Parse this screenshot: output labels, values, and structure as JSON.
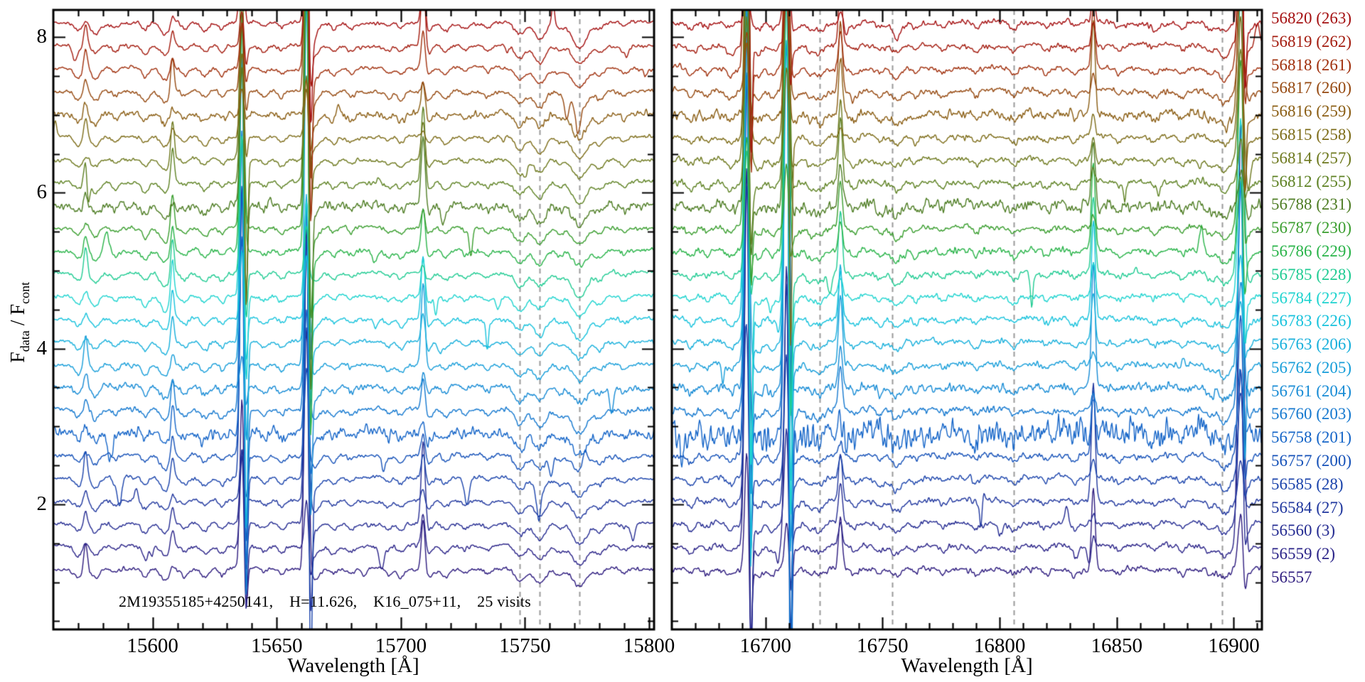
{
  "figure": {
    "annotation": "2M19355185+4250141,    H=11.626,    K16_075+11,    25 visits",
    "y_axis": {
      "f1": "F",
      "sub1": "data",
      "mid": " / F",
      "sub2": "cont"
    }
  },
  "chart_data": {
    "type": "line",
    "title": "",
    "ylabel": "F_data / F_cont",
    "ylim": [
      0.4,
      8.35
    ],
    "yticks": [
      2,
      4,
      6,
      8
    ],
    "y_minor_step": 0.5,
    "offset_start": 1.17,
    "offset_step": 0.2921,
    "panels": [
      {
        "xlabel": "Wavelength [Å]",
        "xlim": [
          15560,
          15802
        ],
        "xticks": [
          15600,
          15650,
          15700,
          15750,
          15800
        ],
        "x_minor_step": 10,
        "dashed_lines": [
          15748,
          15756,
          15772
        ],
        "emission_lines": [
          {
            "l": 15573,
            "w": 0.7,
            "a": 0.35
          },
          {
            "l": 15608,
            "w": 0.7,
            "a": 0.65
          },
          {
            "l": 15636,
            "w": 0.8,
            "a": 2.6,
            "big": true
          },
          {
            "l": 15662,
            "w": 0.8,
            "a": 3.2,
            "big": true
          },
          {
            "l": 15709,
            "w": 0.8,
            "a": 1.0
          }
        ],
        "absorption_lines": [
          {
            "l": 15570,
            "d": 0.1,
            "w": 1.5
          },
          {
            "l": 15577,
            "d": 0.12,
            "w": 1.5
          },
          {
            "l": 15585,
            "d": 0.06,
            "w": 1.2
          },
          {
            "l": 15597,
            "d": 0.1,
            "w": 1.3
          },
          {
            "l": 15605,
            "d": 0.15,
            "w": 1.8
          },
          {
            "l": 15613,
            "d": 0.07,
            "w": 1.2
          },
          {
            "l": 15621,
            "d": 0.1,
            "w": 1.5
          },
          {
            "l": 15628,
            "d": 0.08,
            "w": 1.2
          },
          {
            "l": 15645,
            "d": 0.06,
            "w": 1.2
          },
          {
            "l": 15652,
            "d": 0.07,
            "w": 1.2
          },
          {
            "l": 15665,
            "d": 0.13,
            "w": 2.0
          },
          {
            "l": 15673,
            "d": 0.07,
            "w": 1.3
          },
          {
            "l": 15680,
            "d": 0.06,
            "w": 1.2
          },
          {
            "l": 15695,
            "d": 0.06,
            "w": 1.2
          },
          {
            "l": 15700,
            "d": 0.08,
            "w": 1.3
          },
          {
            "l": 15711,
            "d": 0.1,
            "w": 1.5
          },
          {
            "l": 15718,
            "d": 0.08,
            "w": 1.4
          },
          {
            "l": 15726,
            "d": 0.05,
            "w": 1.2
          },
          {
            "l": 15735,
            "d": 0.06,
            "w": 1.3
          },
          {
            "l": 15748,
            "d": 0.17,
            "w": 2.1
          },
          {
            "l": 15756,
            "d": 0.2,
            "w": 2.3
          },
          {
            "l": 15764,
            "d": 0.07,
            "w": 1.4
          },
          {
            "l": 15772,
            "d": 0.26,
            "w": 2.9
          },
          {
            "l": 15780,
            "d": 0.09,
            "w": 1.6
          },
          {
            "l": 15790,
            "d": 0.06,
            "w": 1.3
          }
        ]
      },
      {
        "xlabel": "Wavelength [Å]",
        "xlim": [
          16660,
          16912
        ],
        "xticks": [
          16700,
          16750,
          16800,
          16850,
          16900
        ],
        "x_minor_step": 10,
        "dashed_lines": [
          16723,
          16754,
          16806,
          16895
        ],
        "emission_lines": [
          {
            "l": 16692,
            "w": 0.9,
            "a": 5.0,
            "big": true,
            "full": true
          },
          {
            "l": 16709,
            "w": 0.9,
            "a": 5.0,
            "big": true,
            "full": true
          },
          {
            "l": 16732,
            "w": 0.8,
            "a": 0.9
          },
          {
            "l": 16840,
            "w": 0.8,
            "a": 1.5
          },
          {
            "l": 16903,
            "w": 1.1,
            "a": 4.0,
            "big": true
          }
        ],
        "absorption_lines": [
          {
            "l": 16668,
            "d": 0.08,
            "w": 1.4
          },
          {
            "l": 16675,
            "d": 0.06,
            "w": 1.2
          },
          {
            "l": 16685,
            "d": 0.09,
            "w": 1.5
          },
          {
            "l": 16697,
            "d": 0.1,
            "w": 1.5
          },
          {
            "l": 16703,
            "d": 0.08,
            "w": 1.3
          },
          {
            "l": 16712,
            "d": 0.09,
            "w": 1.5
          },
          {
            "l": 16719,
            "d": 0.07,
            "w": 1.3
          },
          {
            "l": 16723,
            "d": 0.1,
            "w": 1.8
          },
          {
            "l": 16738,
            "d": 0.07,
            "w": 1.3
          },
          {
            "l": 16749,
            "d": 0.07,
            "w": 1.3
          },
          {
            "l": 16756,
            "d": 0.12,
            "w": 2.0
          },
          {
            "l": 16764,
            "d": 0.06,
            "w": 1.2
          },
          {
            "l": 16776,
            "d": 0.06,
            "w": 1.3
          },
          {
            "l": 16790,
            "d": 0.07,
            "w": 1.3
          },
          {
            "l": 16806,
            "d": 0.07,
            "w": 1.5
          },
          {
            "l": 16820,
            "d": 0.06,
            "w": 1.3
          },
          {
            "l": 16832,
            "d": 0.07,
            "w": 1.3
          },
          {
            "l": 16851,
            "d": 0.06,
            "w": 1.3
          },
          {
            "l": 16866,
            "d": 0.06,
            "w": 1.3
          },
          {
            "l": 16878,
            "d": 0.07,
            "w": 1.3
          },
          {
            "l": 16890,
            "d": 0.08,
            "w": 1.5
          },
          {
            "l": 16896,
            "d": 0.14,
            "w": 2.0
          },
          {
            "l": 16906,
            "d": 0.1,
            "w": 1.5
          }
        ]
      }
    ],
    "visits": [
      {
        "mjd": 56557,
        "label": "56557",
        "color": "#2d1b7e",
        "noise": 1.0
      },
      {
        "mjd": 56559,
        "label": "56559 (2)",
        "color": "#2a2388",
        "noise": 1.0
      },
      {
        "mjd": 56560,
        "label": "56560 (3)",
        "color": "#252c92",
        "noise": 1.0
      },
      {
        "mjd": 56584,
        "label": "56584 (27)",
        "color": "#20379e",
        "noise": 1.0
      },
      {
        "mjd": 56585,
        "label": "56585 (28)",
        "color": "#1a43ab",
        "noise": 1.05
      },
      {
        "mjd": 56757,
        "label": "56757 (200)",
        "color": "#1551b8",
        "noise": 1.1
      },
      {
        "mjd": 56758,
        "label": "56758 (201)",
        "color": "#1565c8",
        "noise": 3.0
      },
      {
        "mjd": 56760,
        "label": "56760 (203)",
        "color": "#1478cf",
        "noise": 1.3
      },
      {
        "mjd": 56761,
        "label": "56761 (204)",
        "color": "#178bd5",
        "noise": 1.6
      },
      {
        "mjd": 56762,
        "label": "56762 (205)",
        "color": "#169dd9",
        "noise": 1.1
      },
      {
        "mjd": 56763,
        "label": "56763 (206)",
        "color": "#16afdb",
        "noise": 1.0
      },
      {
        "mjd": 56783,
        "label": "56783 (226)",
        "color": "#17c2dc",
        "noise": 1.1
      },
      {
        "mjd": 56784,
        "label": "56784 (227)",
        "color": "#1ed3cf",
        "noise": 1.0
      },
      {
        "mjd": 56785,
        "label": "56785 (228)",
        "color": "#1fcb92",
        "noise": 1.0
      },
      {
        "mjd": 56786,
        "label": "56786 (229)",
        "color": "#28b348",
        "noise": 1.25
      },
      {
        "mjd": 56787,
        "label": "56787 (230)",
        "color": "#3a9e2f",
        "noise": 1.1
      },
      {
        "mjd": 56788,
        "label": "56788 (231)",
        "color": "#4e7d24",
        "noise": 2.3
      },
      {
        "mjd": 56812,
        "label": "56812 (255)",
        "color": "#5d8122",
        "noise": 1.1
      },
      {
        "mjd": 56814,
        "label": "56814 (257)",
        "color": "#6d781d",
        "noise": 1.0
      },
      {
        "mjd": 56815,
        "label": "56815 (258)",
        "color": "#7d6c18",
        "noise": 1.0
      },
      {
        "mjd": 56816,
        "label": "56816 (259)",
        "color": "#8a5d13",
        "noise": 1.8
      },
      {
        "mjd": 56817,
        "label": "56817 (260)",
        "color": "#95480f",
        "noise": 1.1
      },
      {
        "mjd": 56818,
        "label": "56818 (261)",
        "color": "#a0300d",
        "noise": 1.0
      },
      {
        "mjd": 56819,
        "label": "56819 (262)",
        "color": "#a31b0e",
        "noise": 1.0
      },
      {
        "mjd": 56820,
        "label": "56820 (263)",
        "color": "#a40f10",
        "noise": 1.0
      }
    ]
  }
}
